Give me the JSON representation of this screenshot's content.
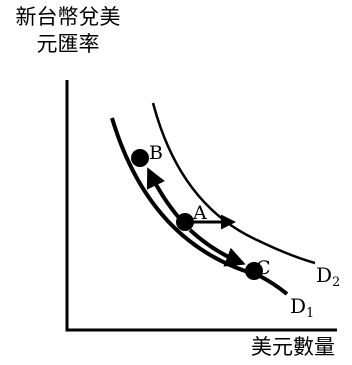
{
  "axes": {
    "y_label_line1": "新台幣兌美",
    "y_label_line2": "元匯率",
    "x_label": "美元數量"
  },
  "curves": {
    "d1_label": "D",
    "d1_sub": "1",
    "d2_label": "D",
    "d2_sub": "2"
  },
  "points": {
    "a": "A",
    "b": "B",
    "c": "C"
  },
  "colors": {
    "ink": "#000000",
    "background": "#ffffff"
  }
}
